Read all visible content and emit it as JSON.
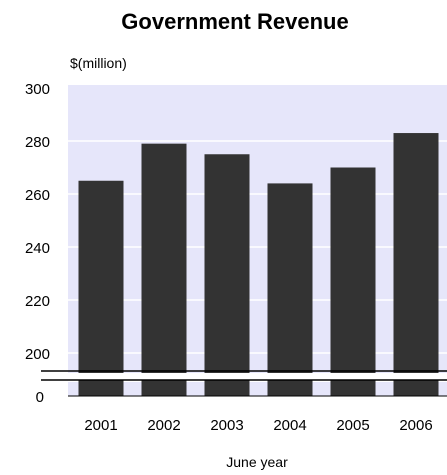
{
  "chart_data": {
    "type": "bar",
    "title": "Government Revenue",
    "ylabel": "$(million)",
    "xlabel": "June year",
    "categories": [
      "2001",
      "2002",
      "2003",
      "2004",
      "2005",
      "2006"
    ],
    "values": [
      265,
      279,
      275,
      264,
      270,
      283
    ],
    "ylim": [
      190,
      300
    ],
    "axis_break": true,
    "yticks": [
      "300",
      "280",
      "260",
      "240",
      "220",
      "200",
      "0"
    ],
    "grid": true,
    "colors": {
      "bar": "#333333",
      "plot_bg": "#e6e6fa",
      "grid": "#ffffff"
    }
  }
}
